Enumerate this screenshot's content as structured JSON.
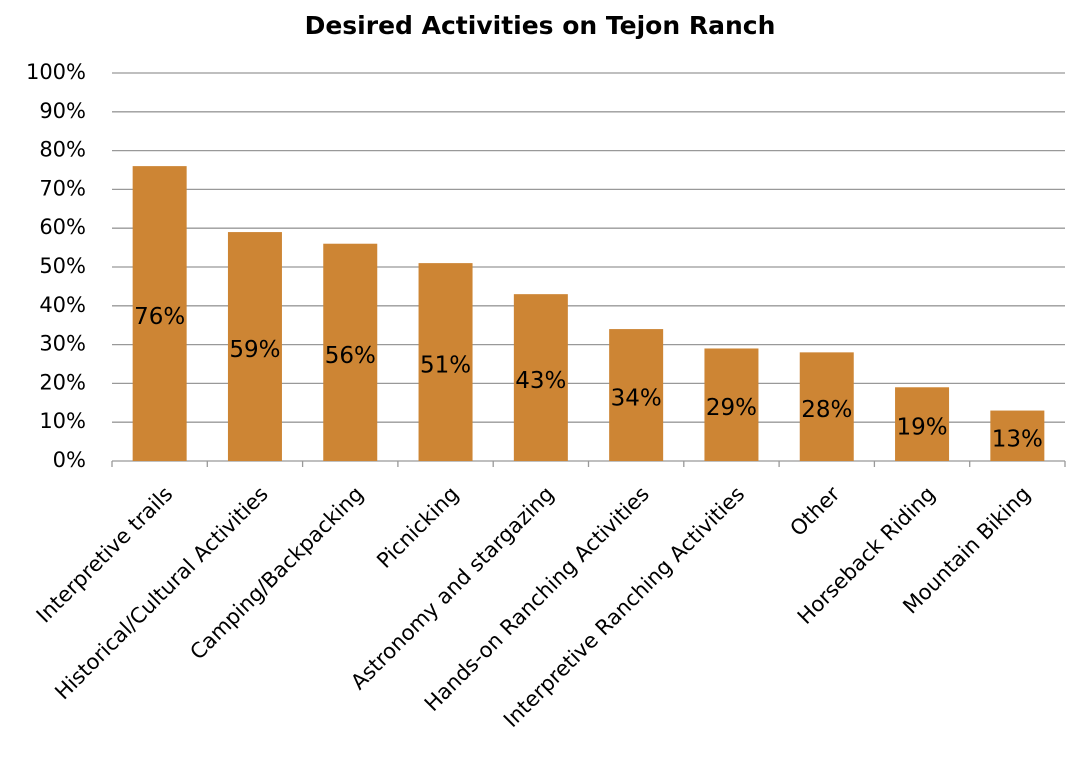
{
  "chart_data": {
    "type": "bar",
    "title": "Desired Activities on Tejon Ranch",
    "categories": [
      "Interpretive trails",
      "Historical/Cultural Activities",
      "Camping/Backpacking",
      "Picnicking",
      "Astronomy and stargazing",
      "Hands-on Ranching Activities",
      "Interpretive Ranching Activities",
      "Other",
      "Horseback Riding",
      "Mountain Biking"
    ],
    "values": [
      76,
      59,
      56,
      51,
      43,
      34,
      29,
      28,
      19,
      13
    ],
    "value_labels": [
      "76%",
      "59%",
      "56%",
      "51%",
      "43%",
      "34%",
      "29%",
      "28%",
      "19%",
      "13%"
    ],
    "color": "#cd8534",
    "ylim": [
      0,
      100
    ],
    "yticks": [
      {
        "value": 0,
        "label": "0%"
      },
      {
        "value": 10,
        "label": "10%"
      },
      {
        "value": 20,
        "label": "20%"
      },
      {
        "value": 30,
        "label": "30%"
      },
      {
        "value": 40,
        "label": "40%"
      },
      {
        "value": 50,
        "label": "50%"
      },
      {
        "value": 60,
        "label": "60%"
      },
      {
        "value": 70,
        "label": "70%"
      },
      {
        "value": 80,
        "label": "80%"
      },
      {
        "value": 90,
        "label": "90%"
      },
      {
        "value": 100,
        "label": "100%"
      }
    ],
    "grid": true
  }
}
